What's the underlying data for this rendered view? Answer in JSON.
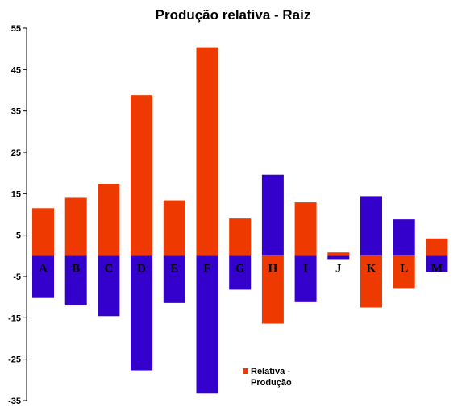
{
  "chart_data": {
    "type": "bar",
    "title": "Produção relativa - Raiz",
    "categories": [
      "A",
      "B",
      "C",
      "D",
      "E",
      "F",
      "G",
      "H",
      "I",
      "J",
      "K",
      "L",
      "M"
    ],
    "ylim": [
      -35,
      55
    ],
    "yticks": [
      55,
      45,
      35,
      25,
      15,
      5,
      -5,
      -15,
      -25,
      -35
    ],
    "grid": false,
    "legend": {
      "label_line1": "Relativa -",
      "label_line2": "Produção",
      "placement": "bottom-center"
    },
    "colors": {
      "positive_orange": "#EE3A00",
      "positive_blue": "#3300CC",
      "axis": "#000000"
    },
    "bars": [
      {
        "category": "A",
        "upper": {
          "value": 11.5,
          "color": "orange"
        },
        "lower": {
          "value": -10.2,
          "color": "blue"
        }
      },
      {
        "category": "B",
        "upper": {
          "value": 14,
          "color": "orange"
        },
        "lower": {
          "value": -12,
          "color": "blue"
        }
      },
      {
        "category": "C",
        "upper": {
          "value": 17.4,
          "color": "orange"
        },
        "lower": {
          "value": -14.6,
          "color": "blue"
        }
      },
      {
        "category": "D",
        "upper": {
          "value": 38.8,
          "color": "orange"
        },
        "lower": {
          "value": -27.7,
          "color": "blue"
        }
      },
      {
        "category": "E",
        "upper": {
          "value": 13.4,
          "color": "orange"
        },
        "lower": {
          "value": -11.4,
          "color": "blue"
        }
      },
      {
        "category": "F",
        "upper": {
          "value": 50.4,
          "color": "orange"
        },
        "lower": {
          "value": -33.3,
          "color": "blue"
        }
      },
      {
        "category": "G",
        "upper": {
          "value": 9,
          "color": "orange"
        },
        "lower": {
          "value": -8.2,
          "color": "blue"
        }
      },
      {
        "category": "H",
        "upper": {
          "value": 19.6,
          "color": "blue"
        },
        "lower": {
          "value": -16.4,
          "color": "orange"
        }
      },
      {
        "category": "I",
        "upper": {
          "value": 12.9,
          "color": "orange"
        },
        "lower": {
          "value": -11.2,
          "color": "blue"
        }
      },
      {
        "category": "J",
        "upper": {
          "value": 0.8,
          "color": "orange"
        },
        "lower": {
          "value": -0.8,
          "color": "blue"
        }
      },
      {
        "category": "K",
        "upper": {
          "value": 14.4,
          "color": "blue"
        },
        "lower": {
          "value": -12.5,
          "color": "orange"
        }
      },
      {
        "category": "L",
        "upper": {
          "value": 8.8,
          "color": "blue"
        },
        "lower": {
          "value": -7.8,
          "color": "orange"
        }
      },
      {
        "category": "M",
        "upper": {
          "value": 4.2,
          "color": "orange"
        },
        "lower": {
          "value": -3.9,
          "color": "blue"
        }
      }
    ]
  }
}
